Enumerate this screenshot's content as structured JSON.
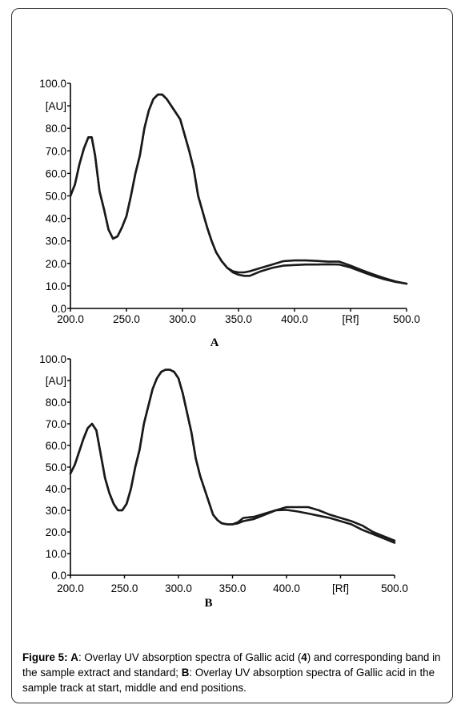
{
  "caption": {
    "prefix": "Figure 5:",
    "a_key": "A",
    "a_text": ": Overlay UV absorption spectra of Gallic acid (",
    "compound_number": "4",
    "a_text_2": ") and corresponding band in the sample extract and standard; ",
    "b_key": "B",
    "b_text": ": Overlay UV absorption spectra of Gallic acid in the sample track at start, middle and end positions."
  },
  "chart_data": [
    {
      "type": "line",
      "panel_label": "A",
      "title": "",
      "ylabel": "[AU]",
      "xlabel": "[Rf]",
      "xlim": [
        200,
        500
      ],
      "ylim": [
        0,
        100
      ],
      "x_ticks": [
        "200.0",
        "250.0",
        "300.0",
        "350.0",
        "400.0",
        "[Rf]",
        "500.0"
      ],
      "y_ticks": [
        "100.0",
        "[AU]",
        "80.0",
        "70.0",
        "60.0",
        "50.0",
        "40.0",
        "30.0",
        "20.0",
        "10.0",
        "0.0"
      ],
      "grid": false,
      "line_color": "#1a1a1a",
      "series": [
        {
          "x": [
            200,
            204,
            208,
            212,
            216,
            219,
            222,
            226,
            230,
            234,
            238,
            242,
            246,
            250,
            254,
            258,
            262,
            266,
            270,
            274,
            278,
            282,
            286,
            290,
            294,
            298,
            302,
            306,
            310,
            314,
            318,
            322,
            326,
            330,
            335,
            340,
            345,
            350,
            355,
            360,
            370,
            380,
            390,
            400,
            410,
            420,
            430,
            440,
            450,
            460,
            470,
            480,
            490,
            500
          ],
          "y": [
            50,
            55,
            64,
            71,
            76,
            76,
            68,
            52,
            44,
            35,
            31,
            32,
            36,
            41,
            50,
            60,
            68,
            80,
            88,
            93,
            95,
            95,
            93,
            90,
            87,
            84,
            77,
            70,
            62,
            50,
            43,
            36,
            30,
            25,
            21,
            18,
            16.5,
            16,
            16,
            16.5,
            18,
            19.5,
            21,
            21.3,
            21.3,
            21.1,
            20.8,
            20.8,
            19,
            17,
            15.2,
            13.5,
            12,
            11
          ]
        },
        {
          "x": [
            200,
            204,
            208,
            212,
            216,
            219,
            222,
            226,
            230,
            234,
            238,
            242,
            246,
            250,
            254,
            258,
            262,
            266,
            270,
            274,
            278,
            282,
            286,
            290,
            294,
            298,
            302,
            306,
            310,
            314,
            318,
            322,
            326,
            330,
            335,
            340,
            345,
            350,
            355,
            360,
            370,
            380,
            390,
            400,
            410,
            420,
            430,
            440,
            450,
            460,
            470,
            480,
            490,
            500
          ],
          "y": [
            50,
            55,
            64,
            71,
            76,
            76,
            68,
            52,
            44,
            35,
            31,
            32,
            36,
            41,
            50,
            60,
            68,
            80,
            88,
            93,
            95,
            95,
            93,
            90,
            87,
            84,
            77,
            70,
            62,
            50,
            43,
            36,
            30,
            25,
            21,
            18,
            16,
            15,
            14.5,
            14.5,
            16.5,
            18,
            19,
            19.3,
            19.5,
            19.5,
            19.6,
            19.5,
            18.2,
            16.3,
            14.5,
            13,
            11.8,
            11
          ]
        }
      ]
    },
    {
      "type": "line",
      "panel_label": "B",
      "title": "",
      "ylabel": "[AU]",
      "xlabel": "[Rf]",
      "xlim": [
        200,
        500
      ],
      "ylim": [
        0,
        100
      ],
      "x_ticks": [
        "200.0",
        "250.0",
        "300.0",
        "350.0",
        "400.0",
        "[Rf]",
        "500.0"
      ],
      "y_ticks": [
        "100.0",
        "[AU]",
        "80.0",
        "70.0",
        "60.0",
        "50.0",
        "40.0",
        "30.0",
        "20.0",
        "10.0",
        "0.0"
      ],
      "grid": false,
      "line_color": "#1a1a1a",
      "series": [
        {
          "x": [
            200,
            204,
            208,
            212,
            216,
            220,
            224,
            228,
            232,
            236,
            240,
            244,
            248,
            252,
            256,
            260,
            264,
            268,
            272,
            276,
            280,
            284,
            288,
            292,
            296,
            300,
            304,
            308,
            312,
            316,
            320,
            324,
            328,
            332,
            336,
            340,
            345,
            350,
            355,
            360,
            370,
            380,
            390,
            400,
            410,
            420,
            430,
            440,
            450,
            460,
            470,
            480,
            490,
            500
          ],
          "y": [
            47,
            51,
            57,
            63,
            68,
            70,
            67,
            56,
            45,
            38,
            33,
            30,
            30,
            33,
            40,
            50,
            58,
            70,
            78,
            86,
            91,
            94,
            95,
            95,
            94,
            91,
            84,
            75,
            66,
            54,
            46,
            40,
            34,
            28,
            25.5,
            24,
            23.5,
            23.5,
            24,
            25,
            26,
            28,
            30,
            31.5,
            31.5,
            31.5,
            30,
            28,
            26.5,
            25,
            23,
            20,
            18,
            16
          ]
        },
        {
          "x": [
            200,
            204,
            208,
            212,
            216,
            220,
            224,
            228,
            232,
            236,
            240,
            244,
            248,
            252,
            256,
            260,
            264,
            268,
            272,
            276,
            280,
            284,
            288,
            292,
            296,
            300,
            304,
            308,
            312,
            316,
            320,
            324,
            328,
            332,
            336,
            340,
            345,
            350,
            355,
            360,
            370,
            380,
            390,
            400,
            410,
            420,
            430,
            440,
            450,
            460,
            470,
            480,
            490,
            500
          ],
          "y": [
            47,
            51,
            57,
            63,
            68,
            70,
            67,
            56,
            45,
            38,
            33,
            30,
            30,
            33,
            40,
            50,
            58,
            70,
            78,
            86,
            91,
            94,
            95,
            95,
            94,
            91,
            84,
            75,
            66,
            54,
            46,
            40,
            34,
            28,
            25.5,
            24,
            23.5,
            23.5,
            24.5,
            26.5,
            27,
            28.5,
            30,
            30.2,
            29.5,
            28.5,
            27.5,
            26.5,
            25,
            23.5,
            21,
            19,
            17,
            15
          ]
        }
      ]
    }
  ]
}
